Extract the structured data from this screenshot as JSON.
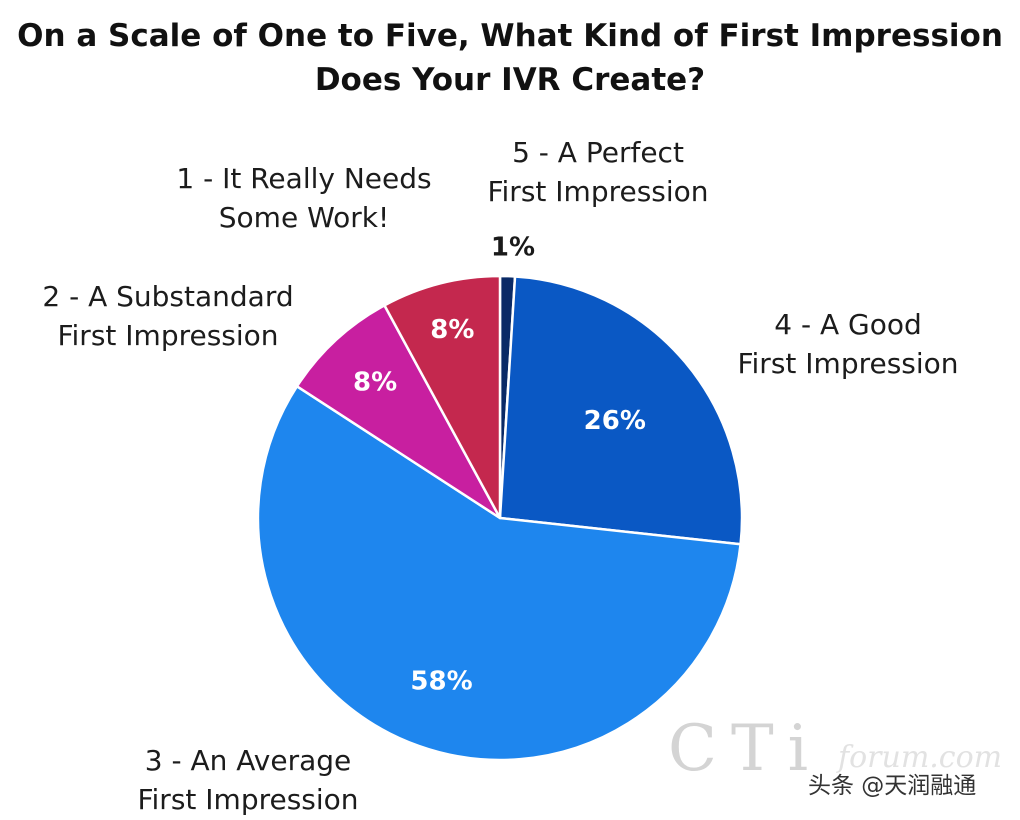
{
  "chart_data": {
    "type": "pie",
    "title_lines": [
      "On a Scale of One to Five, What Kind of First Impression",
      "Does Your IVR Create?"
    ],
    "slices": [
      {
        "key": "five",
        "label_lines": [
          "5 - A Perfect",
          "First Impression"
        ],
        "value": 1,
        "value_label": "1%",
        "color": "#0a2a66",
        "value_label_color": "#1a1a1a"
      },
      {
        "key": "four",
        "label_lines": [
          "4 - A Good",
          "First Impression"
        ],
        "value": 26,
        "value_label": "26%",
        "color": "#0a58c4",
        "value_label_color": "#ffffff"
      },
      {
        "key": "three",
        "label_lines": [
          "3 - An Average",
          "First Impression"
        ],
        "value": 58,
        "value_label": "58%",
        "color": "#1e86ee",
        "value_label_color": "#ffffff"
      },
      {
        "key": "two",
        "label_lines": [
          "2 - A Substandard",
          "First Impression"
        ],
        "value": 8,
        "value_label": "8%",
        "color": "#c81fa0",
        "value_label_color": "#ffffff"
      },
      {
        "key": "one",
        "label_lines": [
          "1 - It Really Needs",
          "Some Work!"
        ],
        "value": 8,
        "value_label": "8%",
        "color": "#c4284e",
        "value_label_color": "#ffffff"
      }
    ]
  },
  "watermark": {
    "brand": "CTi",
    "brand_faint": "forum.com",
    "source": "头条 @天润融通"
  }
}
